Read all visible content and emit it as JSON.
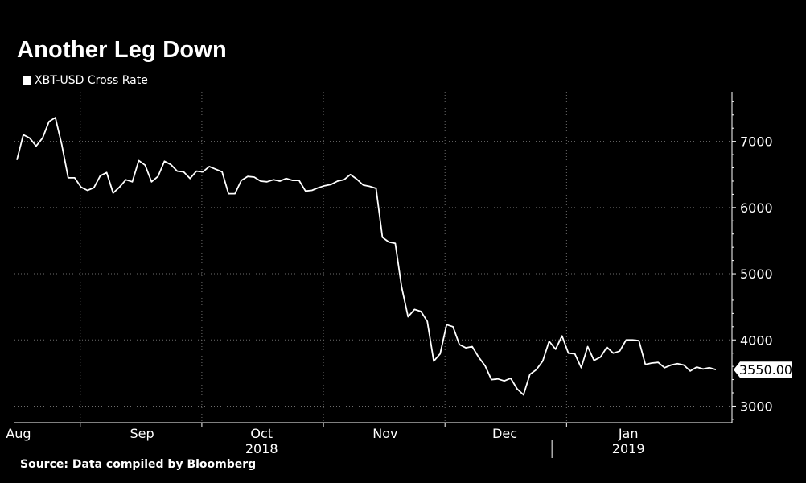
{
  "chart_data": {
    "type": "line",
    "title": "Another Leg Down",
    "legend": [
      "XBT-USD Cross Rate"
    ],
    "source": "Source: Data compiled by Bloomberg",
    "x_start": "2018-07-31",
    "x_end": "2019-01-27",
    "ylim": [
      2750,
      7750
    ],
    "y_ticks": [
      3000,
      4000,
      5000,
      6000,
      7000
    ],
    "month_ticks": [
      {
        "label": "Aug",
        "date": "2018-08-01"
      },
      {
        "label": "Sep",
        "date": "2018-09-01"
      },
      {
        "label": "Oct",
        "date": "2018-10-01"
      },
      {
        "label": "Nov",
        "date": "2018-11-01"
      },
      {
        "label": "Dec",
        "date": "2018-12-01"
      },
      {
        "label": "Jan",
        "date": "2019-01-01"
      }
    ],
    "year_labels": [
      {
        "label": "2018",
        "date": "2018-10-01"
      },
      {
        "label": "2019",
        "date": "2019-01-01"
      }
    ],
    "last_value_label": "3550.00",
    "series": [
      {
        "name": "XBT-USD Cross Rate",
        "color": "#ffffff",
        "points": [
          [
            "2018-07-31",
            6720
          ],
          [
            "2018-08-01",
            7100
          ],
          [
            "2018-08-02",
            7050
          ],
          [
            "2018-08-03",
            6930
          ],
          [
            "2018-08-04",
            7050
          ],
          [
            "2018-08-05",
            7300
          ],
          [
            "2018-08-06",
            7360
          ],
          [
            "2018-08-07",
            6950
          ],
          [
            "2018-08-08",
            6450
          ],
          [
            "2018-08-09",
            6450
          ],
          [
            "2018-08-10",
            6310
          ],
          [
            "2018-08-11",
            6260
          ],
          [
            "2018-08-12",
            6300
          ],
          [
            "2018-08-13",
            6480
          ],
          [
            "2018-08-14",
            6530
          ],
          [
            "2018-08-15",
            6220
          ],
          [
            "2018-08-16",
            6310
          ],
          [
            "2018-08-17",
            6420
          ],
          [
            "2018-08-18",
            6390
          ],
          [
            "2018-08-19",
            6710
          ],
          [
            "2018-08-20",
            6640
          ],
          [
            "2018-08-21",
            6390
          ],
          [
            "2018-08-22",
            6470
          ],
          [
            "2018-08-23",
            6700
          ],
          [
            "2018-08-24",
            6650
          ],
          [
            "2018-08-25",
            6550
          ],
          [
            "2018-08-26",
            6540
          ],
          [
            "2018-08-27",
            6440
          ],
          [
            "2018-08-28",
            6550
          ],
          [
            "2018-08-29",
            6540
          ],
          [
            "2018-08-30",
            6620
          ],
          [
            "2018-08-31",
            6580
          ],
          [
            "2018-09-01",
            6540
          ],
          [
            "2018-09-02",
            6210
          ],
          [
            "2018-09-03",
            6210
          ],
          [
            "2018-09-04",
            6410
          ],
          [
            "2018-09-05",
            6470
          ],
          [
            "2018-09-06",
            6460
          ],
          [
            "2018-09-07",
            6400
          ],
          [
            "2018-09-08",
            6390
          ],
          [
            "2018-09-09",
            6420
          ],
          [
            "2018-09-10",
            6400
          ],
          [
            "2018-09-11",
            6440
          ],
          [
            "2018-09-12",
            6410
          ],
          [
            "2018-09-13",
            6410
          ],
          [
            "2018-09-14",
            6250
          ],
          [
            "2018-09-15",
            6260
          ],
          [
            "2018-09-16",
            6300
          ],
          [
            "2018-09-17",
            6330
          ],
          [
            "2018-09-18",
            6350
          ],
          [
            "2018-09-19",
            6400
          ],
          [
            "2018-09-20",
            6420
          ],
          [
            "2018-09-21",
            6500
          ],
          [
            "2018-09-22",
            6430
          ],
          [
            "2018-09-23",
            6340
          ],
          [
            "2018-09-24",
            6320
          ],
          [
            "2018-09-25",
            6290
          ],
          [
            "2018-09-26",
            5550
          ],
          [
            "2018-09-27",
            5480
          ],
          [
            "2018-09-28",
            5460
          ],
          [
            "2018-09-29",
            4800
          ],
          [
            "2018-09-30",
            4350
          ],
          [
            "2018-10-01",
            4460
          ],
          [
            "2018-10-02",
            4430
          ],
          [
            "2018-10-03",
            4280
          ],
          [
            "2018-10-04",
            3680
          ],
          [
            "2018-10-05",
            3790
          ],
          [
            "2018-10-06",
            4230
          ],
          [
            "2018-10-07",
            4200
          ],
          [
            "2018-10-08",
            3930
          ],
          [
            "2018-10-09",
            3880
          ],
          [
            "2018-10-10",
            3900
          ],
          [
            "2018-10-11",
            3740
          ],
          [
            "2018-10-12",
            3610
          ],
          [
            "2018-10-13",
            3400
          ],
          [
            "2018-10-14",
            3410
          ],
          [
            "2018-10-15",
            3380
          ],
          [
            "2018-10-16",
            3420
          ],
          [
            "2018-10-17",
            3260
          ],
          [
            "2018-10-18",
            3170
          ],
          [
            "2018-10-19",
            3480
          ],
          [
            "2018-10-20",
            3550
          ],
          [
            "2018-10-21",
            3680
          ],
          [
            "2018-10-22",
            3980
          ],
          [
            "2018-10-23",
            3860
          ],
          [
            "2018-10-24",
            4060
          ],
          [
            "2018-10-25",
            3800
          ],
          [
            "2018-10-26",
            3790
          ],
          [
            "2018-10-27",
            3580
          ],
          [
            "2018-10-28",
            3900
          ],
          [
            "2018-10-29",
            3690
          ],
          [
            "2018-10-30",
            3740
          ],
          [
            "2018-10-31",
            3890
          ],
          [
            "2018-11-01",
            3800
          ],
          [
            "2018-11-02",
            3830
          ],
          [
            "2018-11-03",
            4000
          ],
          [
            "2018-11-04",
            4000
          ],
          [
            "2018-11-05",
            3990
          ],
          [
            "2018-11-06",
            3630
          ],
          [
            "2018-11-07",
            3650
          ],
          [
            "2018-11-08",
            3660
          ],
          [
            "2018-11-09",
            3580
          ],
          [
            "2018-11-10",
            3620
          ],
          [
            "2018-11-11",
            3640
          ],
          [
            "2018-11-12",
            3620
          ],
          [
            "2018-11-13",
            3530
          ],
          [
            "2018-11-14",
            3590
          ],
          [
            "2018-11-15",
            3560
          ],
          [
            "2018-11-16",
            3580
          ],
          [
            "2018-11-17",
            3550
          ]
        ]
      }
    ]
  }
}
